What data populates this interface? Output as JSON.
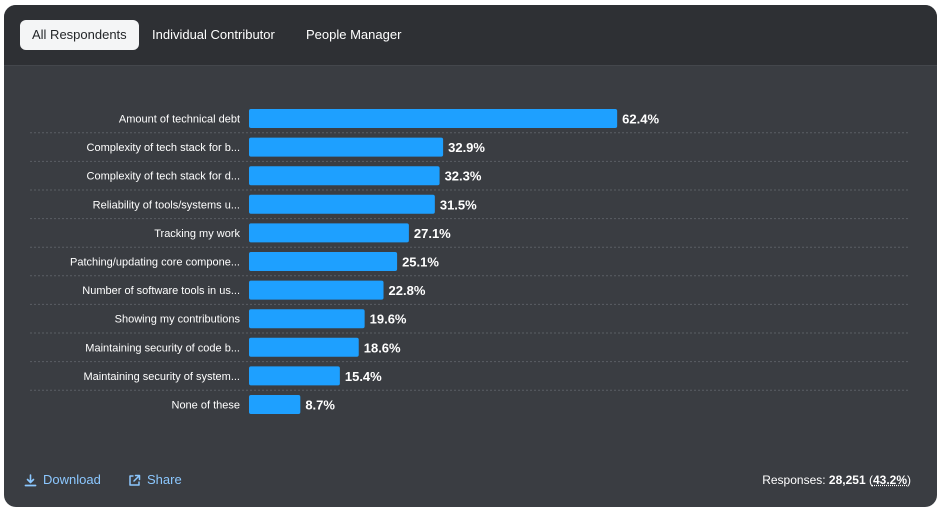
{
  "tabs": [
    {
      "label": "All Respondents",
      "active": true
    },
    {
      "label": "Individual Contributor",
      "active": false
    },
    {
      "label": "People Manager",
      "active": false
    }
  ],
  "chart_data": {
    "type": "bar",
    "orientation": "horizontal",
    "title": "",
    "categories": [
      "Amount of technical debt",
      "Complexity of tech stack for b...",
      "Complexity of tech stack for d...",
      "Reliability of tools/systems u...",
      "Tracking my work",
      "Patching/updating core compone...",
      "Number of software tools in us...",
      "Showing my contributions",
      "Maintaining security of code b...",
      "Maintaining security of system...",
      "None of these"
    ],
    "values": [
      62.4,
      32.9,
      32.3,
      31.5,
      27.1,
      25.1,
      22.8,
      19.6,
      18.6,
      15.4,
      8.7
    ],
    "value_labels": [
      "62.4%",
      "32.9%",
      "32.3%",
      "31.5%",
      "27.1%",
      "25.1%",
      "22.8%",
      "19.6%",
      "18.6%",
      "15.4%",
      "8.7%"
    ],
    "unit": "%",
    "xlim": [
      0,
      100
    ],
    "grid": false,
    "bar_color": "#1ea0ff"
  },
  "footer": {
    "download_label": "Download",
    "share_label": "Share",
    "responses_prefix": "Responses:",
    "responses_count": "28,251",
    "responses_open": "(",
    "responses_pct": "43.2%",
    "responses_close": ")"
  },
  "colors": {
    "card_bg": "#3a3d42",
    "tabbar_bg": "#2e3034",
    "accent": "#1ea0ff",
    "link": "#8cc8ff"
  }
}
